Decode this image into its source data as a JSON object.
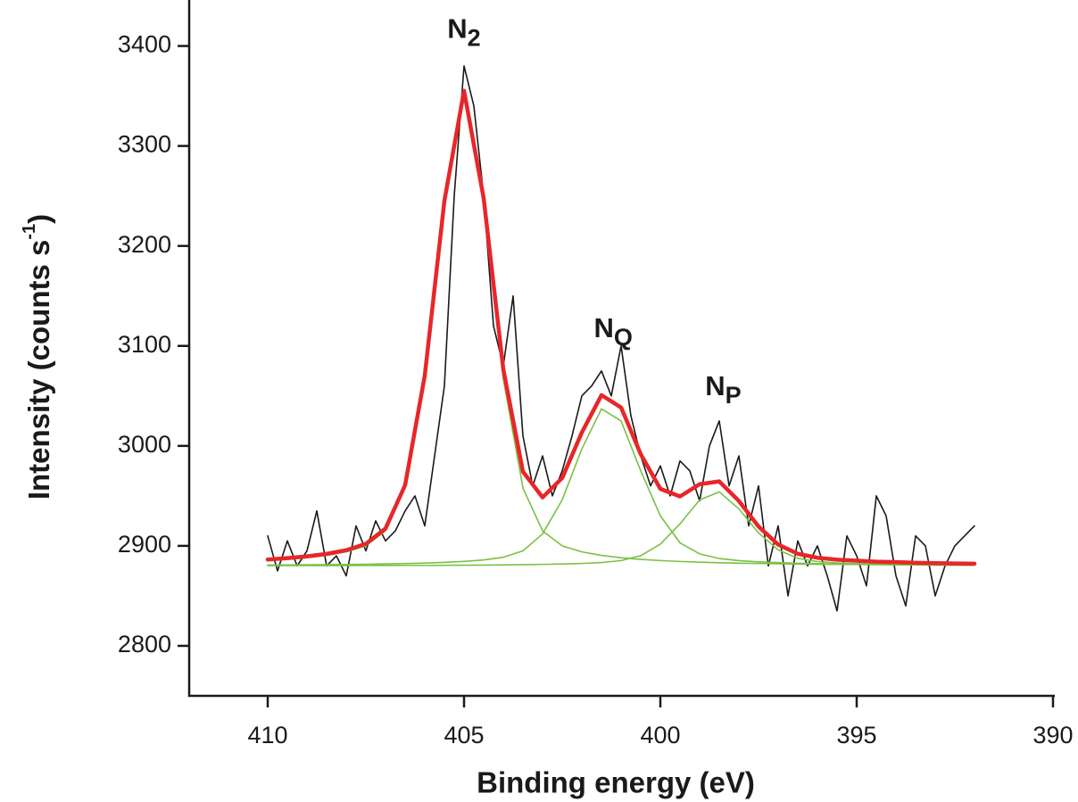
{
  "chart_data": {
    "type": "line",
    "xlabel": "Binding energy (eV)",
    "ylabel": {
      "text": "Intensity (counts s",
      "sup": "-1",
      "end": ")"
    },
    "xlim": [
      412,
      390
    ],
    "ylim": [
      2750,
      3446
    ],
    "xticks": [
      410,
      405,
      400,
      395,
      390
    ],
    "yticks": [
      2800,
      2900,
      3000,
      3100,
      3200,
      3300,
      3400
    ],
    "grid": false,
    "x": [
      410,
      409.5,
      409,
      408.5,
      408,
      407.5,
      407,
      406.5,
      406,
      405.5,
      405,
      404.5,
      404,
      403.5,
      403,
      402.5,
      402,
      401.5,
      401,
      400.5,
      400,
      399.5,
      399,
      398.5,
      398,
      397.5,
      397,
      396.5,
      396,
      395.5,
      395,
      394.5,
      394,
      393.5,
      393,
      392.5,
      392
    ],
    "series": [
      {
        "color": "#1a1a1a",
        "width": 1.6,
        "x": [
          410,
          409.75,
          409.5,
          409.25,
          409,
          408.75,
          408.5,
          408.25,
          408,
          407.75,
          407.5,
          407.25,
          407,
          406.75,
          406.5,
          406.25,
          406,
          405.75,
          405.5,
          405.25,
          405,
          404.75,
          404.5,
          404.25,
          404,
          403.75,
          403.5,
          403.25,
          403,
          402.75,
          402.5,
          402.25,
          402,
          401.75,
          401.5,
          401.25,
          401,
          400.75,
          400.5,
          400.25,
          400,
          399.75,
          399.5,
          399.25,
          399,
          398.75,
          398.5,
          398.25,
          398,
          397.75,
          397.5,
          397.25,
          397,
          396.75,
          396.5,
          396.25,
          396,
          395.75,
          395.5,
          395.25,
          395,
          394.75,
          394.5,
          394.25,
          394,
          393.75,
          393.5,
          393.25,
          393,
          392.75,
          392.5,
          392.25,
          392
        ],
        "values": [
          2910,
          2875,
          2905,
          2880,
          2895,
          2935,
          2880,
          2890,
          2870,
          2920,
          2895,
          2925,
          2905,
          2915,
          2935,
          2950,
          2920,
          2990,
          3060,
          3250,
          3380,
          3340,
          3250,
          3120,
          3080,
          3150,
          3010,
          2960,
          2990,
          2950,
          2975,
          3010,
          3050,
          3060,
          3075,
          3050,
          3100,
          3030,
          2990,
          2960,
          2980,
          2950,
          2985,
          2975,
          2945,
          3000,
          3025,
          2960,
          2990,
          2920,
          2960,
          2880,
          2920,
          2850,
          2905,
          2880,
          2900,
          2870,
          2835,
          2910,
          2890,
          2860,
          2950,
          2930,
          2870,
          2840,
          2910,
          2900,
          2850,
          2880,
          2900,
          2910,
          2920
        ]
      },
      {
        "color": "#7ac143",
        "width": 1.6,
        "values": [
          2885.3,
          2886.5,
          2888.1,
          2890.5,
          2894,
          2900,
          2915,
          2958,
          3067,
          3241,
          3350,
          3241,
          3067,
          2958,
          2915,
          2900,
          2894,
          2890.5,
          2888.1,
          2886.5,
          2885.3,
          2884.4,
          2883.7,
          2883.1,
          2882.7,
          2882.4,
          2882.1,
          2881.9,
          2881.6,
          2881.5,
          2881.4,
          2881.2,
          2881.1,
          2881,
          2880.9,
          2880.8,
          2880.8
        ]
      },
      {
        "color": "#7ac143",
        "width": 1.6,
        "values": [
          2880.8,
          2880.9,
          2881.1,
          2881.2,
          2881.4,
          2881.6,
          2882,
          2882.3,
          2882.8,
          2883.5,
          2884.5,
          2885.9,
          2888.6,
          2895,
          2912,
          2946,
          2997,
          3037,
          3025,
          2975,
          2930,
          2903,
          2892,
          2887.4,
          2885.2,
          2884,
          2883.2,
          2882.6,
          2882.2,
          2881.8,
          2881.6,
          2881.3,
          2881.2,
          2881,
          2880.9,
          2880.8,
          2880.7
        ]
      },
      {
        "color": "#7ac143",
        "width": 1.6,
        "values": [
          2880.2,
          2880.3,
          2880.3,
          2880.3,
          2880.3,
          2880.4,
          2880.4,
          2880.5,
          2880.5,
          2880.6,
          2880.7,
          2880.8,
          2881,
          2881.2,
          2881.5,
          2881.9,
          2882.4,
          2883.3,
          2885.3,
          2890.2,
          2901.7,
          2922,
          2946,
          2954,
          2937,
          2913,
          2896,
          2887.6,
          2884.3,
          2882.9,
          2882.2,
          2881.7,
          2881.4,
          2881.1,
          2880.9,
          2880.8,
          2880.7
        ]
      },
      {
        "color": "#e8262a",
        "width": 4.5,
        "values": [
          2886.3,
          2887.7,
          2889.5,
          2892,
          2895.7,
          2902,
          2917.4,
          2960.8,
          3070.3,
          3245.1,
          3355.2,
          3247.7,
          3076.6,
          2974.2,
          2948.5,
          2967.9,
          3013.4,
          3050.8,
          3038.4,
          2991.7,
          2957,
          2949.4,
          2961.7,
          2964.5,
          2944.9,
          2919.4,
          2901.3,
          2892.1,
          2888.1,
          2886.2,
          2885.2,
          2884.2,
          2883.7,
          2883.1,
          2882.7,
          2882.4,
          2882.2
        ]
      }
    ],
    "annotations": [
      {
        "text": "N",
        "sub": "2",
        "x": 405,
        "y": 3415
      },
      {
        "text": "N",
        "sub": "Q",
        "x": 401.2,
        "y": 3116
      },
      {
        "text": "N",
        "sub": "P",
        "x": 398.4,
        "y": 3058
      }
    ]
  }
}
